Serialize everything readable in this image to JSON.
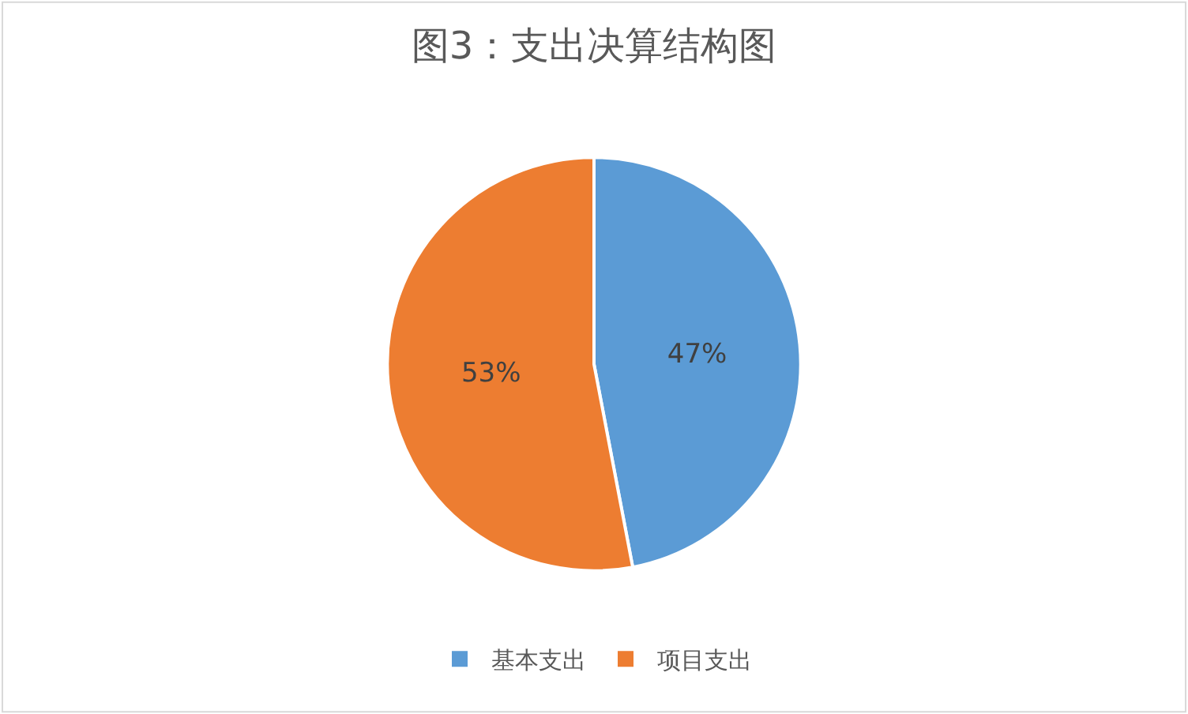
{
  "chart_data": {
    "type": "pie",
    "title": "图3：支出决算结构图",
    "categories": [
      "基本支出",
      "项目支出"
    ],
    "values": [
      47,
      53
    ],
    "value_labels": [
      "47%",
      "53%"
    ],
    "colors": [
      "#5b9bd5",
      "#ed7d31"
    ],
    "legend": "bottom"
  }
}
